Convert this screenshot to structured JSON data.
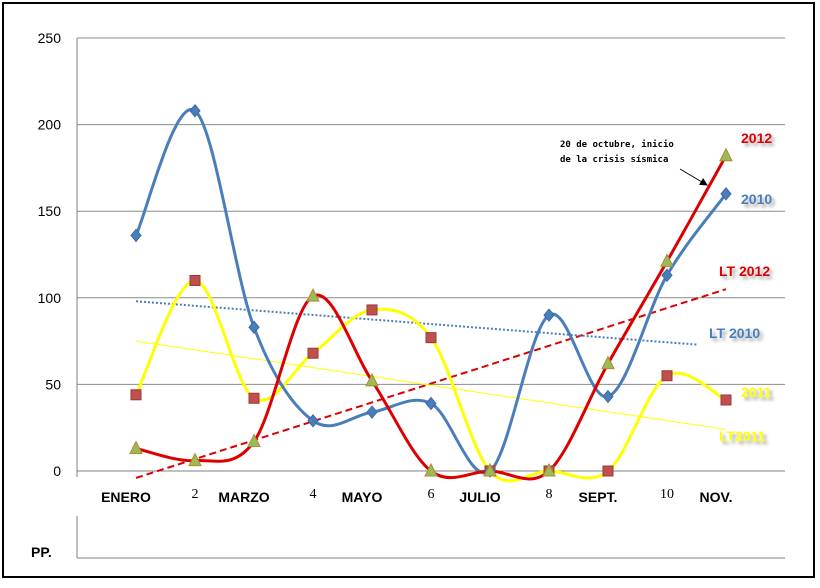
{
  "chart_data": {
    "type": "line",
    "categories": [
      "ENERO",
      "2",
      "MARZO",
      "4",
      "MAYO",
      "6",
      "JULIO",
      "8",
      "SEPT.",
      "10",
      "NOV."
    ],
    "ylim": [
      0,
      250
    ],
    "yticks": [
      0,
      50,
      100,
      150,
      200,
      250
    ],
    "grid": true,
    "series": [
      {
        "name": "2012",
        "color": "#dd0000",
        "marker": "triangle",
        "values": [
          13,
          6,
          17,
          101,
          52,
          0,
          0,
          0,
          62,
          121,
          182
        ]
      },
      {
        "name": "2010",
        "color": "#4a7ebb",
        "marker": "diamond",
        "values": [
          136,
          208,
          83,
          29,
          34,
          39,
          0,
          90,
          43,
          113,
          160
        ]
      },
      {
        "name": "2011",
        "color": "#ffff00",
        "marker": "square",
        "values": [
          44,
          110,
          42,
          68,
          93,
          77,
          0,
          0,
          0,
          55,
          41
        ]
      }
    ],
    "trendlines": [
      {
        "name": "LT 2012",
        "color": "#dd0000",
        "style": "dashed",
        "from": [
          0,
          -4
        ],
        "to": [
          10,
          105
        ]
      },
      {
        "name": "LT 2010",
        "color": "#4a7ebb",
        "style": "dotted",
        "from": [
          0,
          98
        ],
        "to": [
          9.5,
          73
        ]
      },
      {
        "name": "LT2011",
        "color": "#ffff00",
        "style": "solid",
        "from": [
          0,
          75
        ],
        "to": [
          10,
          24
        ]
      }
    ],
    "annotation": {
      "line1": "20 de octubre, inicio",
      "line2": "de la crisis sísmica"
    },
    "table_label": "PP."
  }
}
